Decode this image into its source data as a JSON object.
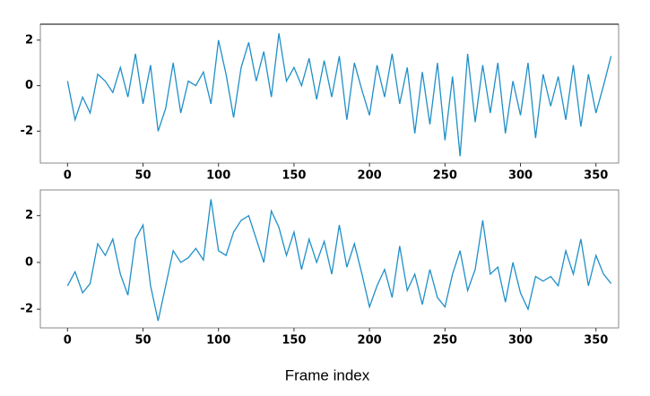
{
  "chart_data": [
    {
      "type": "line",
      "x": [
        0,
        5,
        10,
        15,
        20,
        25,
        30,
        35,
        40,
        45,
        50,
        55,
        60,
        65,
        70,
        75,
        80,
        85,
        90,
        95,
        100,
        105,
        110,
        115,
        120,
        125,
        130,
        135,
        140,
        145,
        150,
        155,
        160,
        165,
        170,
        175,
        180,
        185,
        190,
        195,
        200,
        205,
        210,
        215,
        220,
        225,
        230,
        235,
        240,
        245,
        250,
        255,
        260,
        265,
        270,
        275,
        280,
        285,
        290,
        295,
        300,
        305,
        310,
        315,
        320,
        325,
        330,
        335,
        340,
        345,
        350,
        355,
        360
      ],
      "series": [
        {
          "color": "#1f8fc8",
          "values": [
            0.2,
            -1.5,
            -0.5,
            -1.2,
            0.5,
            0.2,
            -0.3,
            0.8,
            -0.5,
            1.4,
            -0.8,
            0.9,
            -2,
            -1,
            1.0,
            -1.2,
            0.2,
            0,
            0.6,
            -0.8,
            2.0,
            0.5,
            -1.4,
            0.8,
            1.9,
            0.2,
            1.5,
            -0.5,
            2.3,
            0.2,
            0.8,
            0.0,
            1.2,
            -0.6,
            1.1,
            -0.5,
            1.3,
            -1.5,
            1.0,
            -0.2,
            -1.3,
            0.9,
            -0.5,
            1.4,
            -0.8,
            0.8,
            -2.1,
            0.6,
            -1.7,
            1.0,
            -2.4,
            0.4,
            -3.1,
            1.4,
            -1.6,
            0.9,
            -1.2,
            1.0,
            -2.1,
            0.2,
            -1.3,
            1.0,
            -2.3,
            0.5,
            -0.9,
            0.4,
            -1.5,
            0.9,
            -1.8,
            0.5,
            -1.2,
            0.0,
            1.3
          ]
        }
      ],
      "xlim": [
        -18,
        365
      ],
      "ylim": [
        -3.4,
        2.7
      ],
      "xticks": [
        0,
        50,
        100,
        150,
        200,
        250,
        300,
        350
      ],
      "yticks": [
        -2,
        0,
        2
      ]
    },
    {
      "type": "line",
      "x": [
        0,
        5,
        10,
        15,
        20,
        25,
        30,
        35,
        40,
        45,
        50,
        55,
        60,
        65,
        70,
        75,
        80,
        85,
        90,
        95,
        100,
        105,
        110,
        115,
        120,
        125,
        130,
        135,
        140,
        145,
        150,
        155,
        160,
        165,
        170,
        175,
        180,
        185,
        190,
        195,
        200,
        205,
        210,
        215,
        220,
        225,
        230,
        235,
        240,
        245,
        250,
        255,
        260,
        265,
        270,
        275,
        280,
        285,
        290,
        295,
        300,
        305,
        310,
        315,
        320,
        325,
        330,
        335,
        340,
        345,
        350,
        355,
        360
      ],
      "series": [
        {
          "color": "#1f8fc8",
          "values": [
            -1,
            -0.4,
            -1.3,
            -0.9,
            0.8,
            0.3,
            1.0,
            -0.5,
            -1.4,
            1.0,
            1.6,
            -1.0,
            -2.5,
            -1.0,
            0.5,
            0.0,
            0.2,
            0.6,
            0.1,
            2.7,
            0.5,
            0.3,
            1.3,
            1.8,
            2.0,
            1.0,
            0.0,
            2.2,
            1.5,
            0.3,
            1.3,
            -0.3,
            1.0,
            0.0,
            0.9,
            -0.5,
            1.6,
            -0.2,
            0.8,
            -0.5,
            -1.9,
            -1.0,
            -0.3,
            -1.5,
            0.7,
            -1.2,
            -0.5,
            -1.8,
            -0.3,
            -1.5,
            -1.9,
            -0.5,
            0.5,
            -1.2,
            -0.3,
            1.8,
            -0.5,
            -0.2,
            -1.7,
            0.0,
            -1.3,
            -2.0,
            -0.6,
            -0.8,
            -0.6,
            -1.0,
            0.5,
            -0.5,
            1.0,
            -1.0,
            0.3,
            -0.5,
            -0.9
          ]
        }
      ],
      "xlim": [
        -18,
        365
      ],
      "ylim": [
        -2.8,
        3.1
      ],
      "xticks": [
        0,
        50,
        100,
        150,
        200,
        250,
        300,
        350
      ],
      "yticks": [
        -2,
        0,
        2
      ],
      "xlabel": "Frame index"
    }
  ]
}
